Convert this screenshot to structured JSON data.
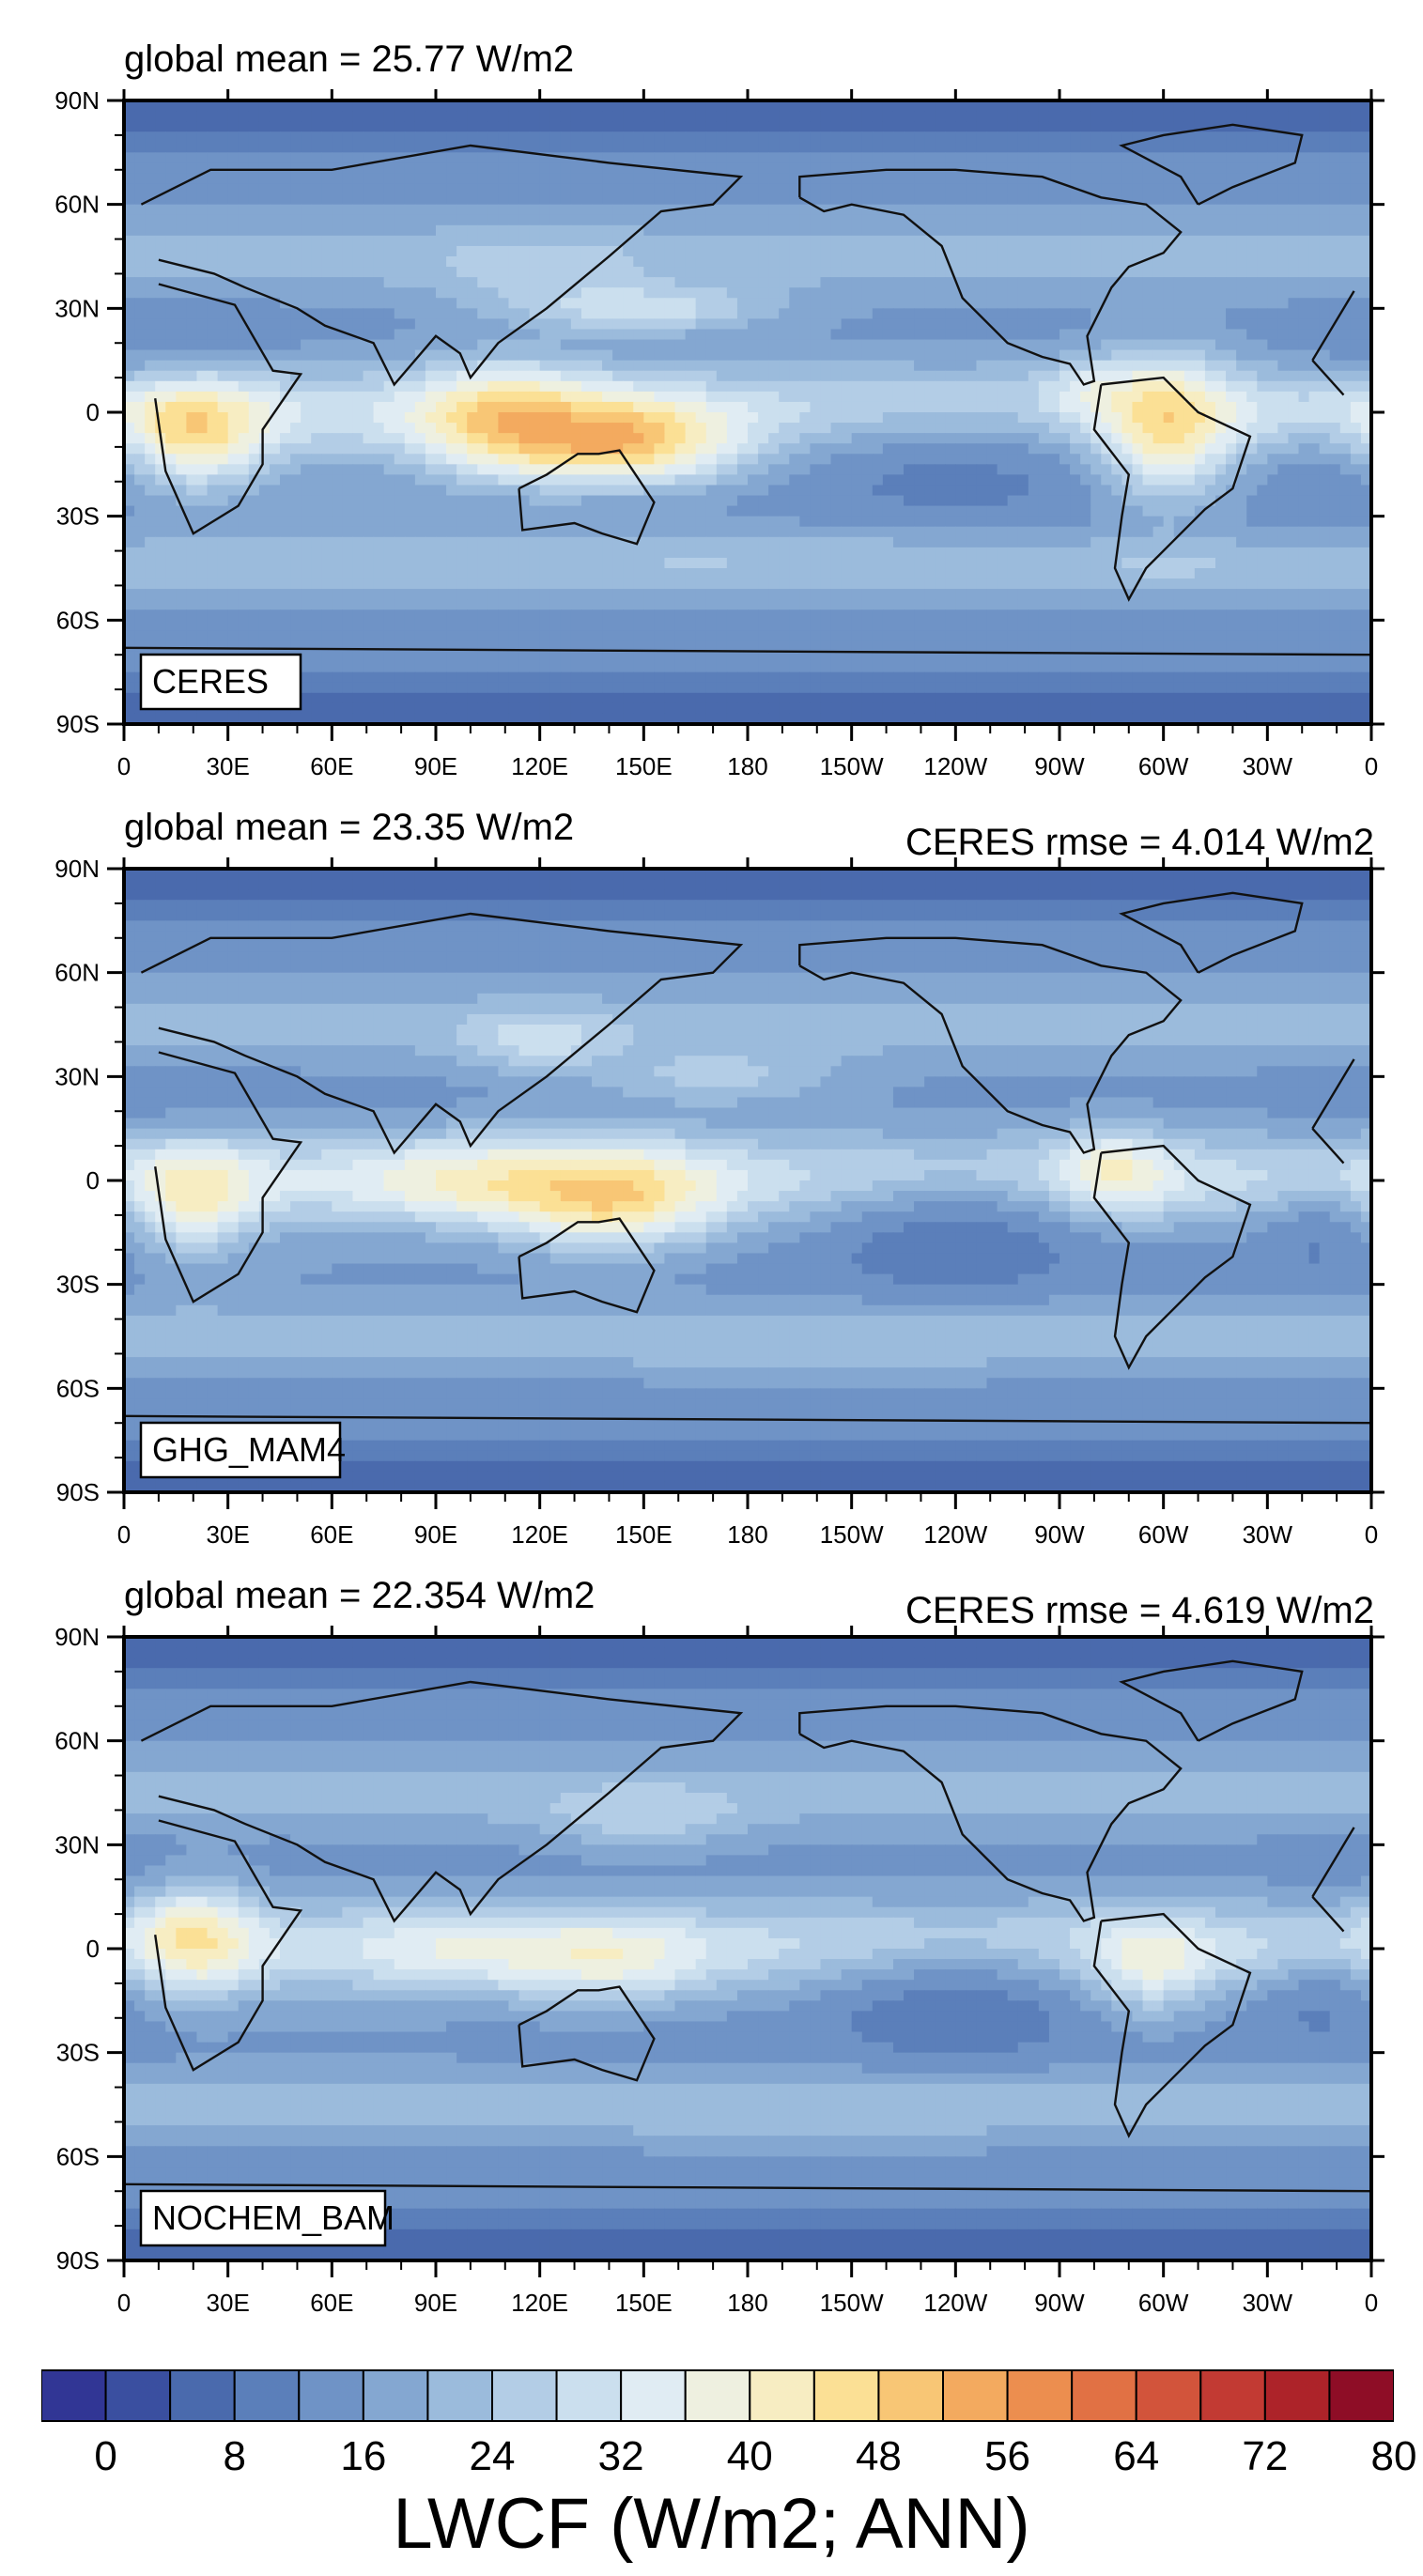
{
  "panels": [
    {
      "left_title": "global mean = 25.77 W/m2",
      "right_title": "",
      "label": "CERES",
      "fields": {
        "warm": [
          [
            20,
            -5,
            15,
            12,
            0.45,
            75
          ],
          [
            110,
            -3,
            18,
            11,
            0.5,
            70
          ],
          [
            140,
            -8,
            20,
            8,
            0.6,
            70
          ],
          [
            160,
            -10,
            18,
            8,
            0.3,
            60
          ],
          [
            -60,
            -5,
            14,
            14,
            0.55,
            70
          ],
          [
            150,
            30,
            25,
            5,
            0.6,
            41
          ],
          [
            -80,
            5,
            10,
            6,
            0.4,
            50
          ],
          [
            120,
            40,
            20,
            8,
            0.35,
            38
          ]
        ],
        "cold": [
          [
            -120,
            -15,
            35,
            12,
            0.55,
            6
          ],
          [
            -15,
            -20,
            15,
            10,
            0.5,
            10
          ],
          [
            10,
            20,
            25,
            8,
            0.5,
            10
          ],
          [
            -170,
            -40,
            50,
            6,
            0.3,
            25
          ],
          [
            80,
            -35,
            40,
            8,
            0.3,
            24
          ]
        ]
      }
    },
    {
      "left_title": "global mean = 23.35 W/m2",
      "right_title": "CERES rmse = 4.014 W/m2",
      "label": "GHG_MAM4",
      "fields": {
        "warm": [
          [
            20,
            -5,
            13,
            12,
            0.4,
            68
          ],
          [
            100,
            0,
            25,
            8,
            0.35,
            60
          ],
          [
            140,
            -5,
            22,
            10,
            0.55,
            66
          ],
          [
            -75,
            2,
            12,
            8,
            0.45,
            62
          ],
          [
            120,
            40,
            15,
            6,
            0.4,
            45
          ],
          [
            170,
            30,
            25,
            6,
            0.4,
            40
          ]
        ],
        "cold": [
          [
            -120,
            -15,
            30,
            12,
            0.6,
            4
          ],
          [
            -15,
            -15,
            15,
            10,
            0.5,
            6
          ],
          [
            10,
            25,
            25,
            8,
            0.5,
            12
          ],
          [
            60,
            -25,
            30,
            8,
            0.35,
            18
          ],
          [
            -160,
            -50,
            40,
            6,
            0.35,
            22
          ]
        ]
      }
    },
    {
      "left_title": "global mean = 22.354 W/m2",
      "right_title": "CERES rmse = 4.619 W/m2",
      "label": "NOCHEM_BAM",
      "fields": {
        "warm": [
          [
            20,
            5,
            12,
            12,
            0.45,
            68
          ],
          [
            100,
            0,
            22,
            8,
            0.3,
            52
          ],
          [
            140,
            -3,
            18,
            8,
            0.4,
            55
          ],
          [
            -65,
            -5,
            12,
            10,
            0.4,
            60
          ],
          [
            150,
            38,
            20,
            6,
            0.4,
            40
          ]
        ],
        "cold": [
          [
            -120,
            -15,
            30,
            12,
            0.6,
            4
          ],
          [
            -15,
            -15,
            15,
            10,
            0.5,
            6
          ],
          [
            10,
            25,
            25,
            8,
            0.5,
            12
          ],
          [
            60,
            -25,
            30,
            8,
            0.35,
            18
          ],
          [
            -160,
            -50,
            40,
            6,
            0.35,
            22
          ]
        ]
      }
    }
  ],
  "axes": {
    "x_ticks": [
      "0",
      "30E",
      "60E",
      "90E",
      "120E",
      "150E",
      "180",
      "150W",
      "120W",
      "90W",
      "60W",
      "30W",
      "0"
    ],
    "y_ticks": [
      "90N",
      "60N",
      "30N",
      "0",
      "30S",
      "60S",
      "90S"
    ]
  },
  "colorbar": {
    "title": "LWCF (W/m2; ANN)",
    "labels": [
      "0",
      "8",
      "16",
      "24",
      "32",
      "40",
      "48",
      "56",
      "64",
      "72",
      "80"
    ],
    "colors": [
      "#313695",
      "#3a4fa0",
      "#4a6aad",
      "#5b7fba",
      "#6f93c6",
      "#84a7d1",
      "#9bbbdc",
      "#b3cde6",
      "#cbdfee",
      "#e0ecf3",
      "#eef0e0",
      "#f7edc2",
      "#fbe095",
      "#f8c675",
      "#f3aa5f",
      "#ec8e4f",
      "#e17144",
      "#d2543b",
      "#c23a33",
      "#ad2329",
      "#8e0d26"
    ]
  }
}
